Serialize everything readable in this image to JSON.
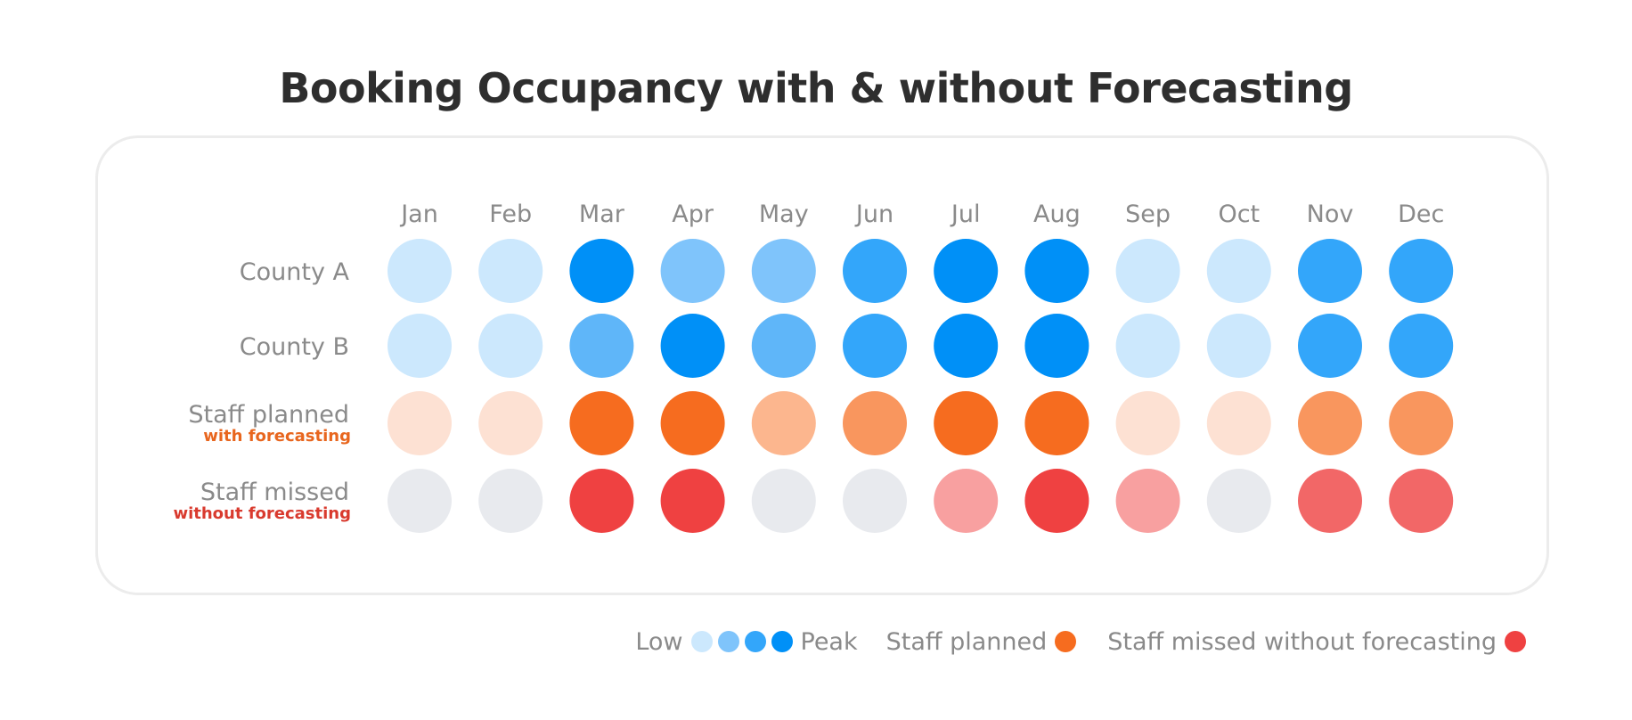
{
  "chart_data": {
    "type": "heatmap",
    "title": "Booking Occupancy with & without Forecasting",
    "columns": [
      "Jan",
      "Feb",
      "Mar",
      "Apr",
      "May",
      "Jun",
      "Jul",
      "Aug",
      "Sep",
      "Oct",
      "Nov",
      "Dec"
    ],
    "rows": [
      {
        "label": "County A",
        "sublabel": "",
        "palette": "blue",
        "levels": [
          1,
          1,
          4,
          2,
          2,
          3,
          4,
          4,
          1,
          1,
          3,
          3
        ]
      },
      {
        "label": "County B",
        "sublabel": "",
        "palette": "blue",
        "levels": [
          1,
          1,
          2.5,
          4,
          2.5,
          3,
          4,
          4,
          1,
          1,
          3,
          3
        ]
      },
      {
        "label": "Staff planned",
        "sublabel": "with forecasting",
        "palette": "orange",
        "levels": [
          1,
          1,
          4,
          4,
          2,
          3,
          4,
          4,
          1,
          1,
          3,
          3
        ]
      },
      {
        "label": "Staff missed",
        "sublabel": "without forecasting",
        "palette": "red",
        "levels": [
          0,
          0,
          4,
          4,
          0,
          0,
          2,
          4,
          2,
          0,
          3,
          3
        ]
      }
    ],
    "level_scale": "0 = none, 1 = low ... 4 = peak",
    "colors": {
      "blue": [
        "#e8eaee",
        "#cce8fd",
        "#7fc4fb",
        "#33a6fa",
        "#0090f7"
      ],
      "blue_mid": "#5fb6f9",
      "orange": [
        "#e8eaee",
        "#fde1d3",
        "#fcb68e",
        "#f9965e",
        "#f66c1f"
      ],
      "red": [
        "#e8eaee",
        "#fde1d3",
        "#f8a0a0",
        "#f26767",
        "#ef4141"
      ]
    }
  },
  "legend": {
    "low_label": "Low",
    "peak_label": "Peak",
    "scale_colors": [
      "#cce8fd",
      "#7fc4fb",
      "#33a6fa",
      "#0090f7"
    ],
    "staff_planned_label": "Staff planned",
    "staff_planned_color": "#f66c1f",
    "staff_missed_label": "Staff missed without forecasting",
    "staff_missed_color": "#ef4141"
  }
}
